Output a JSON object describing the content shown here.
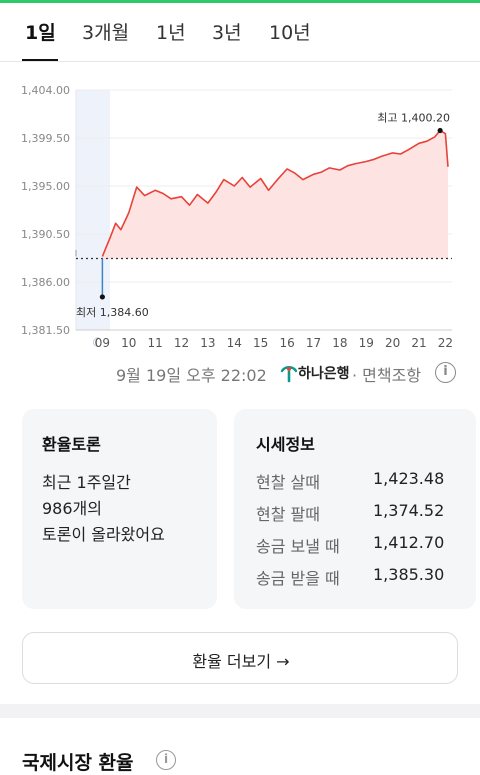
{
  "tabs": [
    {
      "label": "1일",
      "active": true
    },
    {
      "label": "3개월",
      "active": false
    },
    {
      "label": "1년",
      "active": false
    },
    {
      "label": "3년",
      "active": false
    },
    {
      "label": "10년",
      "active": false
    }
  ],
  "chart_data": {
    "type": "area",
    "title": "",
    "xlabel": "",
    "ylabel": "",
    "ylim": [
      1381.5,
      1404.0
    ],
    "y_ticks": [
      "1,404.00",
      "1,399.50",
      "1,395.00",
      "1,390.50",
      "1,386.00",
      "1,381.50"
    ],
    "x_ticks": [
      "09",
      "10",
      "11",
      "12",
      "13",
      "14",
      "15",
      "16",
      "17",
      "18",
      "19",
      "20",
      "21",
      "22"
    ],
    "baseline": 1388.2,
    "max_label": "최고 1,400.20",
    "min_label": "최저 1,384.60",
    "colors": {
      "line": "#e8423a",
      "fill": "#fde3e1",
      "baseline": "#333333",
      "gap_line": "#3d85c6",
      "night": "#eef2fa"
    },
    "series": [
      {
        "x": [
          9.0,
          9.3,
          9.5,
          9.7,
          10.0,
          10.3,
          10.6,
          11.0,
          11.3,
          11.6,
          12.0,
          12.3,
          12.6,
          13.0,
          13.3,
          13.6,
          14.0,
          14.3,
          14.6,
          15.0,
          15.3,
          15.6,
          16.0,
          16.3,
          16.6,
          17.0,
          17.3,
          17.6,
          18.0,
          18.3,
          18.6,
          19.0,
          19.3,
          19.6,
          20.0,
          20.3,
          20.6,
          21.0,
          21.3,
          21.6,
          21.8,
          22.0,
          22.1
        ],
        "values": [
          1388.4,
          1390.2,
          1391.5,
          1390.9,
          1392.5,
          1394.9,
          1394.1,
          1394.6,
          1394.3,
          1393.8,
          1394.0,
          1393.2,
          1394.2,
          1393.4,
          1394.4,
          1395.6,
          1395.0,
          1395.8,
          1394.9,
          1395.7,
          1394.6,
          1395.5,
          1396.6,
          1396.2,
          1395.6,
          1396.1,
          1396.3,
          1396.7,
          1396.5,
          1396.9,
          1397.1,
          1397.3,
          1397.5,
          1397.8,
          1398.1,
          1398.0,
          1398.4,
          1399.0,
          1399.2,
          1399.6,
          1400.2,
          1399.9,
          1396.8
        ]
      }
    ]
  },
  "caption": {
    "datetime": "9월 19일 오후 22:02",
    "bank": "하나은행",
    "disclaimer": "· 면책조항",
    "info": "i"
  },
  "forum": {
    "title": "환율토론",
    "lines": [
      "최근 1주일간",
      "986개의",
      "토론이 올라왔어요"
    ]
  },
  "market": {
    "title": "시세정보",
    "rows": [
      {
        "label": "현찰 살때",
        "value": "1,423.48"
      },
      {
        "label": "현찰 팔때",
        "value": "1,374.52"
      },
      {
        "label": "송금 보낼 때",
        "value": "1,412.70"
      },
      {
        "label": "송금 받을 때",
        "value": "1,385.30"
      }
    ]
  },
  "more_button": "환율 더보기 →",
  "section": {
    "title": "국제시장 환율",
    "info": "i"
  }
}
